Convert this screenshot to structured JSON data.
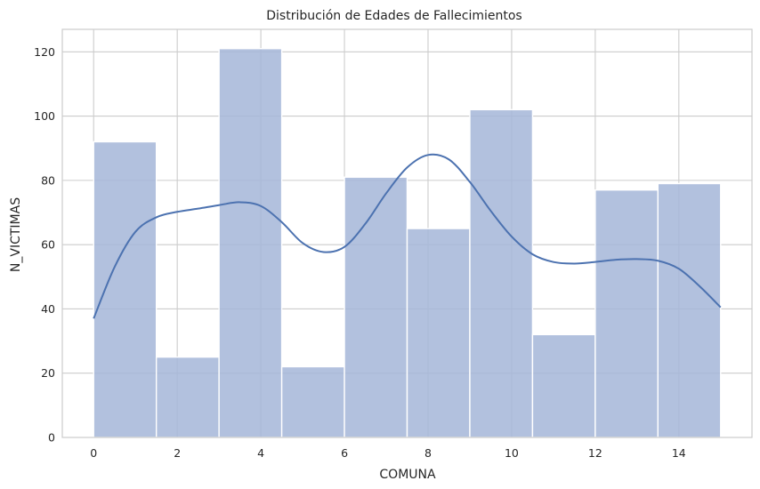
{
  "chart_data": {
    "type": "bar",
    "title": "Distribución de Edades de Fallecimientos",
    "xlabel": "COMUNA",
    "ylabel": "N_VICTIMAS",
    "xlim": [
      -0.75,
      15.75
    ],
    "ylim": [
      0,
      127
    ],
    "xticks": [
      0,
      2,
      4,
      6,
      8,
      10,
      12,
      14
    ],
    "yticks": [
      0,
      20,
      40,
      60,
      80,
      100,
      120
    ],
    "grid": true,
    "bins": [
      {
        "start": 0.0,
        "end": 1.5,
        "value": 92
      },
      {
        "start": 1.5,
        "end": 3.0,
        "value": 25
      },
      {
        "start": 3.0,
        "end": 4.5,
        "value": 121
      },
      {
        "start": 4.5,
        "end": 6.0,
        "value": 22
      },
      {
        "start": 6.0,
        "end": 7.5,
        "value": 81
      },
      {
        "start": 7.5,
        "end": 9.0,
        "value": 65
      },
      {
        "start": 9.0,
        "end": 10.5,
        "value": 102
      },
      {
        "start": 10.5,
        "end": 12.0,
        "value": 32
      },
      {
        "start": 12.0,
        "end": 13.5,
        "value": 77
      },
      {
        "start": 13.5,
        "end": 15.0,
        "value": 79
      }
    ],
    "kde": {
      "x": [
        0,
        0.5,
        1,
        1.5,
        2,
        2.5,
        3,
        3.5,
        4,
        4.5,
        5,
        5.5,
        6,
        6.5,
        7,
        7.5,
        8,
        8.5,
        9,
        9.5,
        10,
        10.5,
        11,
        11.5,
        12,
        12.5,
        13,
        13.5,
        14,
        14.5,
        15
      ],
      "y": [
        37,
        53,
        64,
        68.5,
        70.2,
        71.2,
        72.3,
        73.2,
        72,
        67,
        60.5,
        57.7,
        59.3,
        66.5,
        76,
        84,
        87.9,
        86.5,
        79.5,
        70.5,
        62.5,
        57,
        54.6,
        54.1,
        54.6,
        55.3,
        55.5,
        55,
        52.5,
        47,
        40.5
      ]
    },
    "colors": {
      "bar_fill": "#a4b6d8",
      "bar_edge": "#ffffff",
      "kde_line": "#4c72b0",
      "grid": "#cccccc",
      "text": "#262626"
    }
  }
}
